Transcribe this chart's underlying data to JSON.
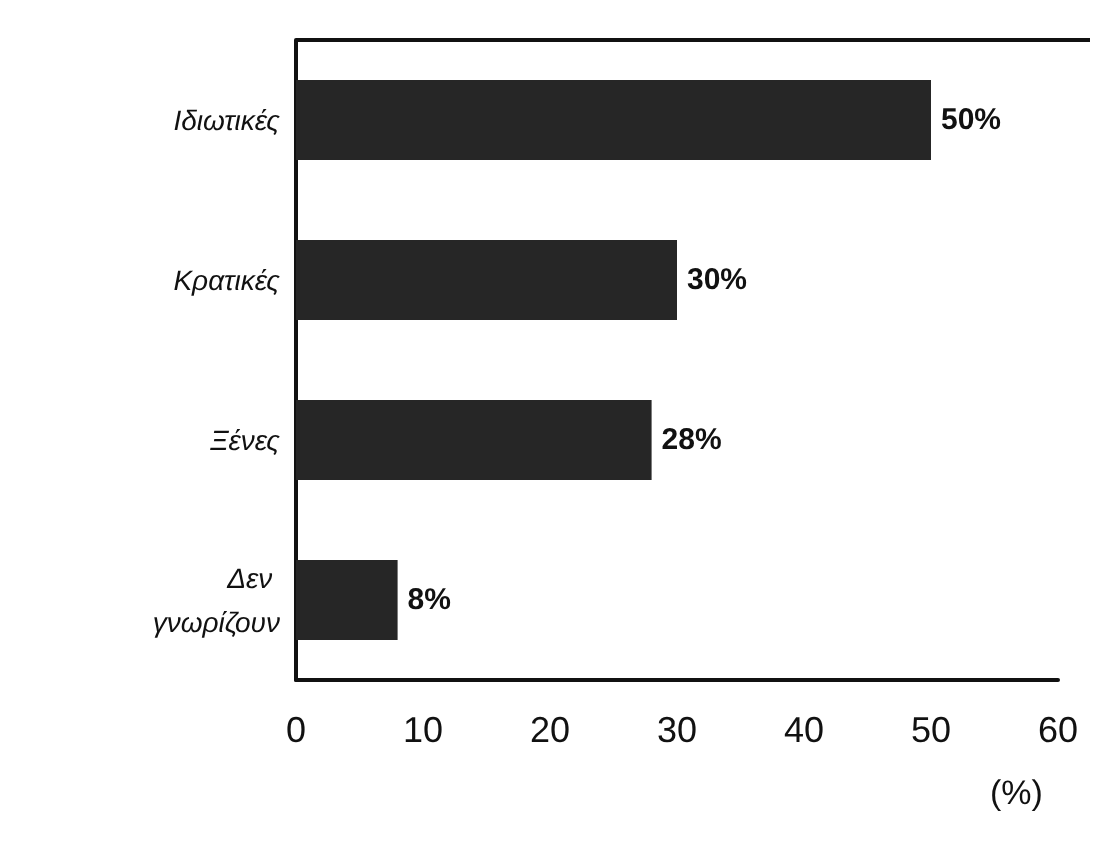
{
  "chart_data": {
    "type": "bar",
    "orientation": "horizontal",
    "xlabel": "(%)",
    "categories": [
      "Ιδιωτικές",
      "Κρατικές",
      "Ξένες",
      "Δεν γνωρίζουν"
    ],
    "values": [
      50,
      30,
      28,
      8
    ],
    "color": "#262626",
    "value_labels": [
      "50%",
      "30%",
      "28%",
      "8%"
    ],
    "xlim": [
      0,
      60
    ],
    "xticks": [
      0,
      10,
      20,
      30,
      40,
      50,
      60
    ],
    "grid": false
  }
}
